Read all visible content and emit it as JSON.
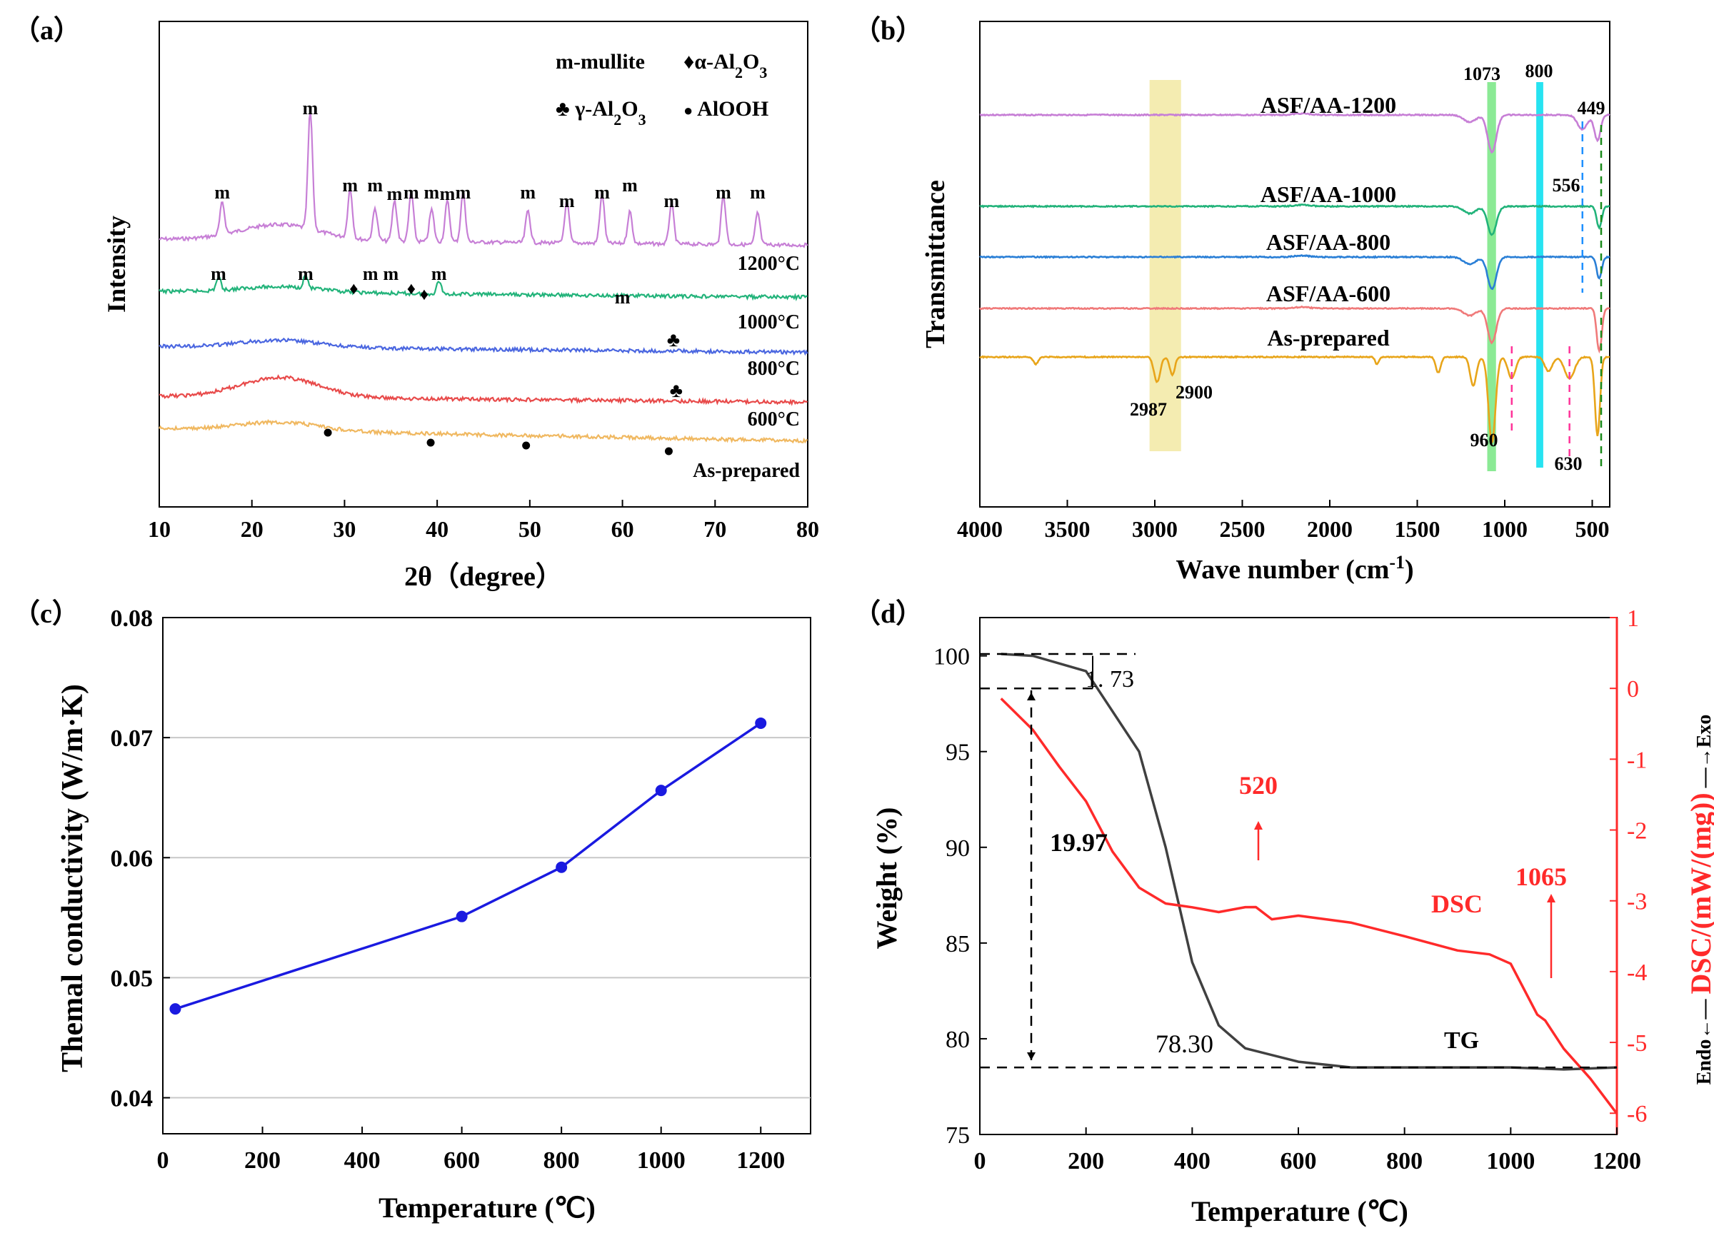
{
  "panels": {
    "a": {
      "label": "（a）",
      "legend": {
        "mullite": "m-mullite",
        "alpha": "α-Al",
        "gamma": "γ-Al",
        "sub2": "2",
        "o": "O",
        "sub3": "3",
        "alooh": "AlOOH"
      },
      "sym_diamond": "♦",
      "sym_club": "♣",
      "sym_dot": "●",
      "peak_m": "m"
    },
    "b": {
      "label": "（b）"
    },
    "c": {
      "label": "（c）"
    },
    "d": {
      "label": "（d）"
    }
  },
  "chart_data": [
    {
      "id": "a",
      "type": "line",
      "title": "",
      "xlabel": "2θ（degree）",
      "ylabel": "Intensity",
      "xlim": [
        10,
        80
      ],
      "xticks": [
        10,
        20,
        30,
        40,
        50,
        60,
        70,
        80
      ],
      "series": [
        {
          "name": "1200°C",
          "color": "#c77fd6",
          "label": "1200°C",
          "peaks": [
            16.8,
            26.3,
            30.6,
            33.3,
            35.4,
            37.2,
            39.4,
            41.1,
            42.8,
            49.8,
            54.0,
            57.8,
            60.8,
            65.3,
            70.9,
            74.6
          ]
        },
        {
          "name": "1000°C",
          "color": "#22b37a",
          "label": "1000°C",
          "peaks": [
            16.4,
            25.8,
            40.2
          ]
        },
        {
          "name": "800°C",
          "color": "#4a66e0",
          "label": "800°C"
        },
        {
          "name": "600°C",
          "color": "#e84a4a",
          "label": "600°C"
        },
        {
          "name": "As-prepared",
          "color": "#f0b860",
          "label": "As-prepared"
        }
      ],
      "annotations_m": [
        16.8,
        26.3,
        30.6,
        33.3,
        35.4,
        37.2,
        39.4,
        41.1,
        42.8,
        49.8,
        54.0,
        57.8,
        60.8,
        65.3,
        70.9,
        74.6
      ],
      "annotations_m_1000": [
        16.4,
        25.8,
        32.8,
        35.0,
        40.2,
        60.0
      ],
      "annotations_diamond": [
        31.0,
        37.2,
        38.6
      ],
      "annotations_club": [
        65.5,
        65.8
      ],
      "annotations_dot": [
        28.2,
        39.3,
        49.6,
        65.0
      ]
    },
    {
      "id": "b",
      "type": "line",
      "xlabel": "Wave number (cm",
      "xlabel_sup": "-1",
      "xlabel_end": ")",
      "ylabel": "Transmittance",
      "xlim": [
        4000,
        400
      ],
      "xticks": [
        4000,
        3500,
        3000,
        2500,
        2000,
        1500,
        1000,
        500
      ],
      "series": [
        {
          "name": "ASF/AA-1200",
          "color": "#c77fd6"
        },
        {
          "name": "ASF/AA-1000",
          "color": "#22b37a"
        },
        {
          "name": "ASF/AA-800",
          "color": "#2a7fd6"
        },
        {
          "name": "ASF/AA-600",
          "color": "#f07a7a"
        },
        {
          "name": "As-prepared",
          "color": "#e8a51a"
        }
      ],
      "bands": [
        {
          "from": 3030,
          "to": 2850,
          "color": "#f3eaa8"
        },
        {
          "from": 1100,
          "to": 1050,
          "color": "#7ee88a"
        },
        {
          "from": 820,
          "to": 780,
          "color": "#10e0f0"
        }
      ],
      "peak_labels": [
        "1073",
        "800",
        "449",
        "556",
        "2987",
        "2900",
        "960",
        "630"
      ]
    },
    {
      "id": "c",
      "type": "line",
      "xlabel": "Temperature (℃)",
      "ylabel": "Themal conductivity (W/m·K)",
      "xlim": [
        0,
        1300
      ],
      "ylim": [
        0.037,
        0.08
      ],
      "xticks": [
        0,
        200,
        400,
        600,
        800,
        1000,
        1200
      ],
      "yticks": [
        "0.04",
        "0.05",
        "0.06",
        "0.07",
        "0.08"
      ],
      "x": [
        25,
        600,
        800,
        1000,
        1200
      ],
      "values": [
        0.0474,
        0.0551,
        0.0592,
        0.0656,
        0.0712
      ],
      "color": "#1a1ae0"
    },
    {
      "id": "d",
      "type": "line",
      "xlabel": "Temperature (℃)",
      "ylabel_left": "Weight (%)",
      "ylabel_right": "DSC/(mW/(mg))",
      "endo_exo_exo": "Exo",
      "endo_exo_endo": "Endo",
      "xlim": [
        0,
        1200
      ],
      "ylim_left": [
        75,
        102
      ],
      "ylim_right": [
        -6.3,
        1
      ],
      "xticks": [
        0,
        200,
        400,
        600,
        800,
        1000,
        1200
      ],
      "yticks_left": [
        75,
        80,
        85,
        90,
        95,
        100
      ],
      "yticks_right": [
        1,
        0,
        -1,
        -2,
        -3,
        -4,
        -5,
        -6
      ],
      "series": [
        {
          "name": "TG",
          "color": "#404040",
          "x": [
            40,
            100,
            200,
            300,
            350,
            400,
            450,
            500,
            600,
            700,
            800,
            900,
            1000,
            1100,
            1200
          ],
          "values": [
            100.1,
            100.0,
            99.2,
            95.0,
            90.0,
            84.0,
            80.7,
            79.5,
            78.8,
            78.5,
            78.5,
            78.5,
            78.5,
            78.4,
            78.5
          ]
        },
        {
          "name": "DSC",
          "color": "#ff2a2a",
          "x": [
            40,
            100,
            150,
            200,
            250,
            300,
            350,
            400,
            450,
            500,
            520,
            550,
            600,
            700,
            800,
            900,
            960,
            1000,
            1050,
            1065,
            1100,
            1150,
            1200
          ],
          "values": [
            -0.15,
            -0.6,
            -1.1,
            -1.6,
            -2.3,
            -2.8,
            -3.05,
            -3.1,
            -3.15,
            -3.1,
            -3.1,
            -3.25,
            -3.2,
            -3.3,
            -3.5,
            -3.7,
            -3.75,
            -3.9,
            -4.6,
            -4.7,
            -5.1,
            -5.5,
            -6.0
          ]
        }
      ],
      "annotations": {
        "a173": "1. 73",
        "a1997": "19.97",
        "a7830": "78.30",
        "a520": "520",
        "a1065": "1065",
        "tg": "TG",
        "dsc": "DSC"
      }
    }
  ]
}
